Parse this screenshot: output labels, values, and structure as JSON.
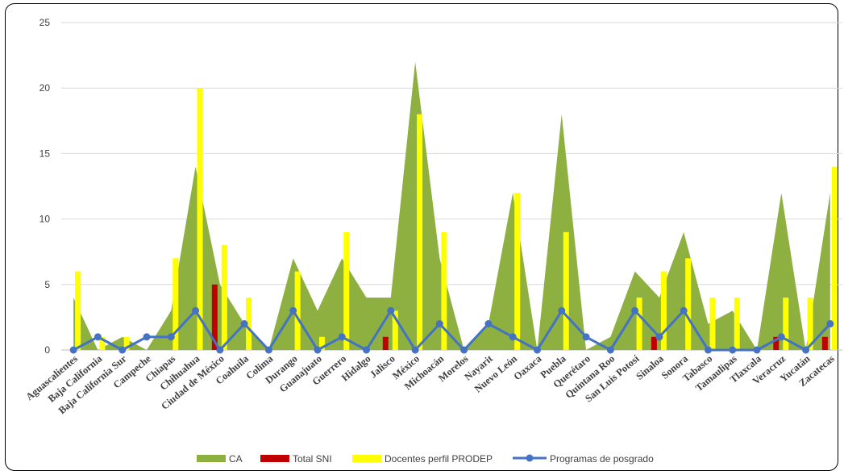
{
  "chart_data": {
    "type": "bar",
    "categories": [
      "Aguascalientes",
      "Baja California",
      "Baja California Sur",
      "Campeche",
      "Chiapas",
      "Chihuahua",
      "Ciudad de México",
      "Coahuila",
      "Colima",
      "Durango",
      "Guanajuato",
      "Guerrero",
      "Hidalgo",
      "Jalisco",
      "México",
      "Michoacán",
      "Morelos",
      "Nayarit",
      "Nuevo León",
      "Oaxaca",
      "Puebla",
      "Querétaro",
      "Quintana Roo",
      "San Luis Potosí",
      "Sinaloa",
      "Sonora",
      "Tabasco",
      "Tamaulipas",
      "Tlaxcala",
      "Veracruz",
      "Yucatán",
      "Zacatecas"
    ],
    "series": [
      {
        "name": "CA",
        "type": "area",
        "color": "#8DB040",
        "values": [
          4,
          0,
          1,
          0,
          3,
          14,
          5,
          2,
          0,
          7,
          3,
          7,
          4,
          4,
          22,
          7,
          0,
          2,
          12,
          0,
          18,
          0,
          1,
          6,
          4,
          9,
          2,
          3,
          0,
          12,
          0,
          12
        ]
      },
      {
        "name": "Total SNI",
        "type": "bar",
        "color": "#C00000",
        "values": [
          0,
          0,
          0,
          0,
          0,
          0,
          5,
          0,
          0,
          0,
          0,
          0,
          0,
          1,
          0,
          0,
          0,
          0,
          0,
          0,
          0,
          0,
          0,
          0,
          1,
          0,
          0,
          0,
          0,
          1,
          0,
          1
        ]
      },
      {
        "name": "Docentes perfil PRODEP",
        "type": "bar",
        "color": "#FFFF00",
        "values": [
          6,
          1,
          1,
          0,
          7,
          20,
          8,
          4,
          0,
          6,
          1,
          9,
          0,
          3,
          18,
          9,
          0,
          0,
          12,
          0,
          9,
          0,
          0,
          4,
          6,
          7,
          4,
          4,
          0,
          4,
          4,
          14
        ]
      },
      {
        "name": "Programas de posgrado",
        "type": "line",
        "color": "#4472C4",
        "values": [
          0,
          1,
          0,
          1,
          1,
          3,
          0,
          2,
          0,
          3,
          0,
          1,
          0,
          3,
          0,
          2,
          0,
          2,
          1,
          0,
          3,
          1,
          0,
          3,
          1,
          3,
          0,
          0,
          0,
          1,
          0,
          2
        ]
      }
    ],
    "yticks": [
      "0",
      "5",
      "10",
      "15",
      "20",
      "25"
    ],
    "ylim": [
      0,
      25
    ],
    "grid": true,
    "legend_position": "bottom"
  }
}
